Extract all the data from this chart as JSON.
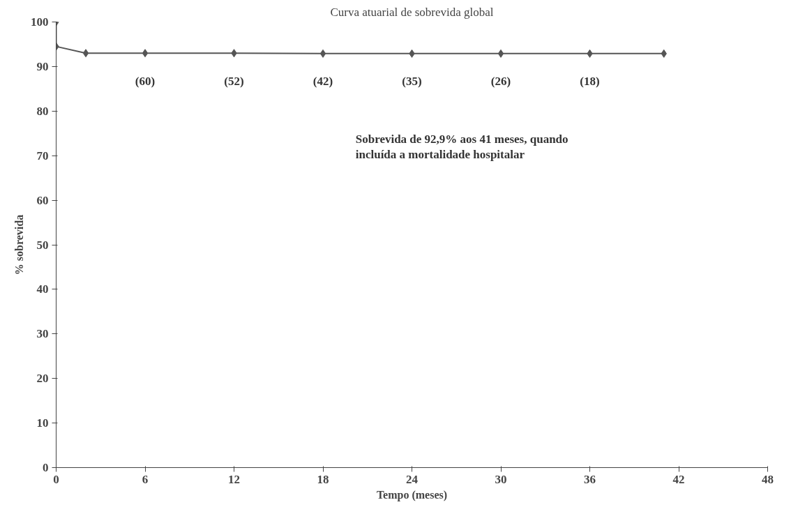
{
  "chart_data": {
    "type": "line",
    "title": "Curva atuarial de sobrevida global",
    "xlabel": "Tempo (meses)",
    "ylabel": "% sobrevida",
    "x": [
      0,
      0,
      2,
      6,
      12,
      18,
      24,
      30,
      36,
      41
    ],
    "series": [
      {
        "color": "#555555",
        "values": [
          100,
          94.5,
          93,
          93,
          93,
          92.9,
          92.9,
          92.9,
          92.9,
          92.9
        ]
      }
    ],
    "xlim": [
      0,
      48
    ],
    "xticks": [
      0,
      6,
      12,
      18,
      24,
      30,
      36,
      42,
      48
    ],
    "ylim": [
      0,
      100
    ],
    "yticks": [
      0,
      10,
      20,
      30,
      40,
      50,
      60,
      70,
      80,
      90,
      100
    ],
    "grid": false,
    "marker": "diamond",
    "line_style": "solid",
    "annotations": [
      "(60)",
      "(52)",
      "(42)",
      "(35)",
      "(26)",
      "(18)",
      "Sobrevida de 92,9% aos 41 meses, quando\nincluída a mortalidade hospitalar"
    ]
  }
}
